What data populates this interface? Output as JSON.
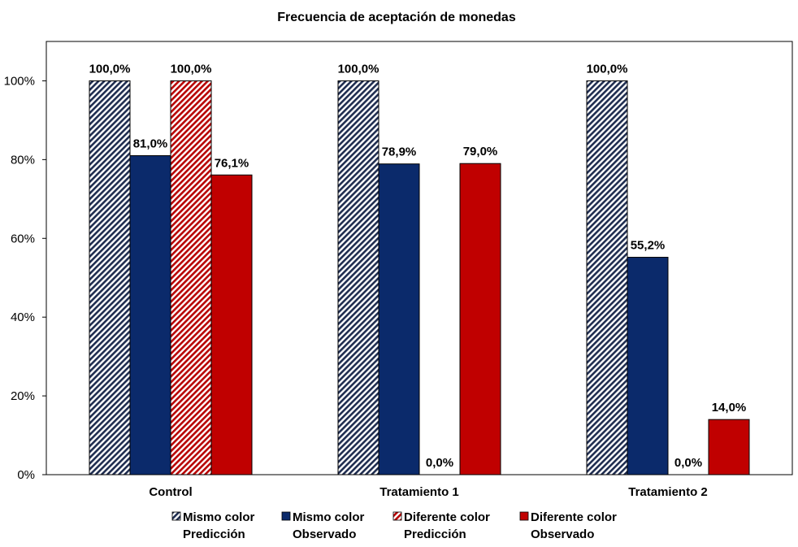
{
  "chart_data": {
    "type": "bar",
    "title": "Frecuencia de aceptación de monedas",
    "categories": [
      "Control",
      "Tratamiento 1",
      "Tratamiento 2"
    ],
    "ylim": [
      0,
      110
    ],
    "yticks": [
      0,
      20,
      40,
      60,
      80,
      100
    ],
    "ytick_labels": [
      "0%",
      "20%",
      "40%",
      "60%",
      "80%",
      "100%"
    ],
    "grid": false,
    "legend_position": "bottom",
    "series": [
      {
        "name_lines": [
          "Mismo color",
          "Predicción"
        ],
        "values": [
          100.0,
          100.0,
          100.0
        ],
        "labels": [
          "100,0%",
          "100,0%",
          "100,0%"
        ],
        "fill": "hatch",
        "color": "#1f2d50"
      },
      {
        "name_lines": [
          "Mismo color",
          "Observado"
        ],
        "values": [
          81.0,
          78.9,
          55.2
        ],
        "labels": [
          "81,0%",
          "78,9%",
          "55,2%"
        ],
        "fill": "solid",
        "color": "#0b2a6b"
      },
      {
        "name_lines": [
          "Diferente color",
          "Predicción"
        ],
        "values": [
          100.0,
          0.0,
          0.0
        ],
        "labels": [
          "100,0%",
          "0,0%",
          "0,0%"
        ],
        "fill": "hatch",
        "color": "#b80000"
      },
      {
        "name_lines": [
          "Diferente color",
          "Observado"
        ],
        "values": [
          76.1,
          79.0,
          14.0
        ],
        "labels": [
          "76,1%",
          "79,0%",
          "14,0%"
        ],
        "fill": "solid",
        "color": "#c00000"
      }
    ]
  }
}
